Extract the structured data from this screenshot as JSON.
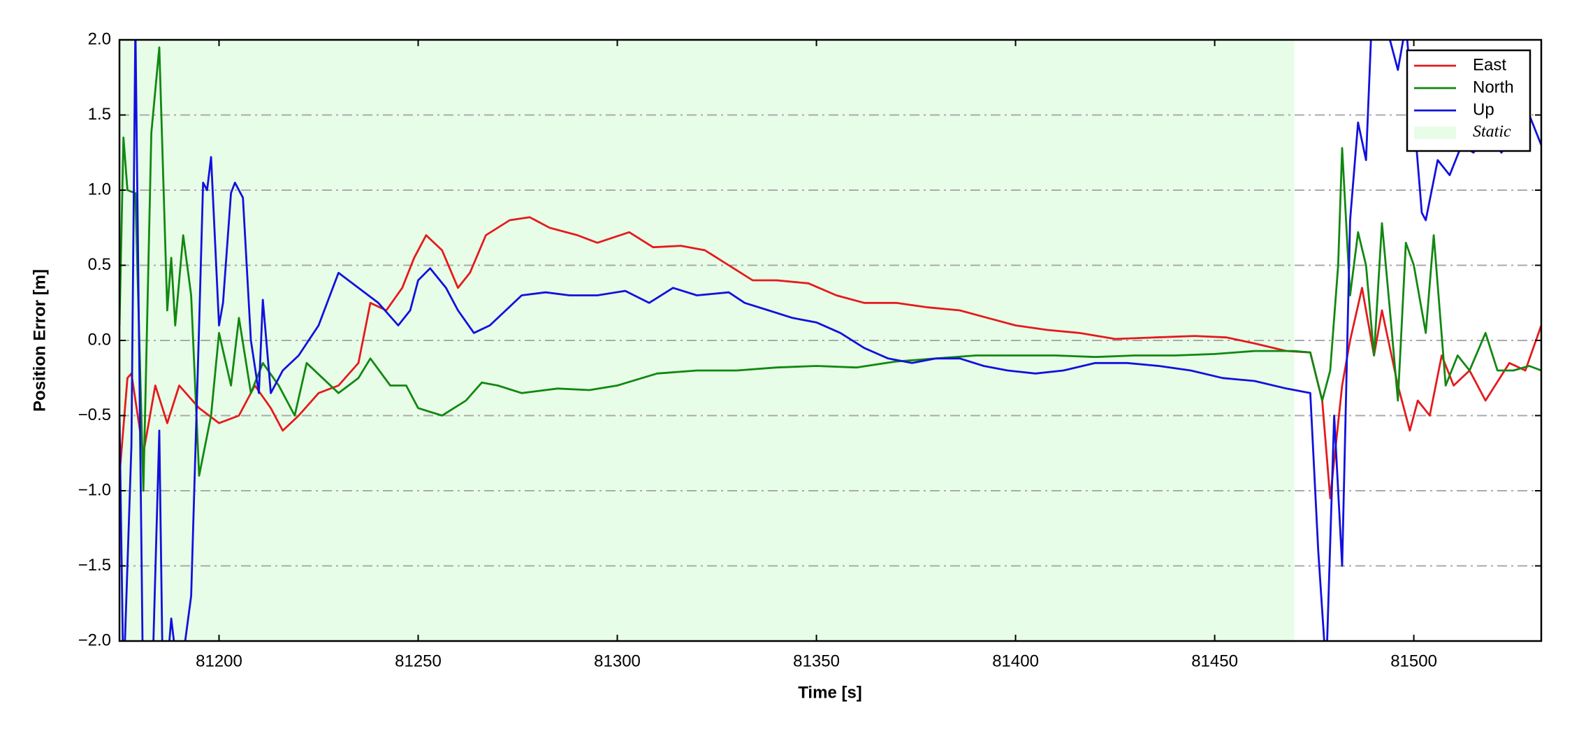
{
  "chart_data": {
    "type": "line",
    "xlabel": "Time [s]",
    "ylabel": "Position Error [m]",
    "xlim": [
      81175,
      81532
    ],
    "ylim": [
      -2,
      2
    ],
    "xticks": [
      81200,
      81250,
      81300,
      81350,
      81400,
      81450,
      81500
    ],
    "yticks": [
      {
        "value": -2,
        "label": "−2.0"
      },
      {
        "value": -1.5,
        "label": "−1.5"
      },
      {
        "value": -1,
        "label": "−1.0"
      },
      {
        "value": -0.5,
        "label": "−0.5"
      },
      {
        "value": 0,
        "label": "0.0"
      },
      {
        "value": 0.5,
        "label": "0.5"
      },
      {
        "value": 1,
        "label": "1.0"
      },
      {
        "value": 1.5,
        "label": "1.5"
      },
      {
        "value": 2,
        "label": "2.0"
      }
    ],
    "grid": true,
    "legend": "upper right",
    "spans": [
      {
        "name": "Static",
        "color": "#e8fde8",
        "x": [
          81175,
          81470
        ]
      }
    ],
    "series": [
      {
        "name": "East",
        "color": "#e41a1c",
        "x": [
          81175,
          81177,
          81178,
          81181,
          81184,
          81187,
          81190,
          81195,
          81200,
          81205,
          81209,
          81213,
          81216,
          81220,
          81225,
          81230,
          81235,
          81238,
          81242,
          81246,
          81249,
          81252,
          81256,
          81260,
          81263,
          81267,
          81273,
          81278,
          81283,
          81290,
          81295,
          81303,
          81309,
          81316,
          81322,
          81328,
          81334,
          81340,
          81348,
          81355,
          81362,
          81370,
          81378,
          81386,
          81393,
          81400,
          81408,
          81416,
          81425,
          81435,
          81445,
          81453,
          81460,
          81468,
          81474,
          81477,
          81479,
          81482,
          81484,
          81487,
          81490,
          81492,
          81496,
          81499,
          81501,
          81504,
          81507,
          81510,
          81514,
          81518,
          81524,
          81528,
          81532
        ],
        "values": [
          -0.9,
          -0.25,
          -0.22,
          -0.75,
          -0.3,
          -0.55,
          -0.3,
          -0.45,
          -0.55,
          -0.5,
          -0.3,
          -0.45,
          -0.6,
          -0.5,
          -0.35,
          -0.3,
          -0.15,
          0.25,
          0.2,
          0.35,
          0.55,
          0.7,
          0.6,
          0.35,
          0.45,
          0.7,
          0.8,
          0.82,
          0.75,
          0.7,
          0.65,
          0.72,
          0.62,
          0.63,
          0.6,
          0.5,
          0.4,
          0.4,
          0.38,
          0.3,
          0.25,
          0.25,
          0.22,
          0.2,
          0.15,
          0.1,
          0.07,
          0.05,
          0.01,
          0.02,
          0.03,
          0.02,
          -0.02,
          -0.07,
          -0.08,
          -0.4,
          -1.05,
          -0.3,
          0.0,
          0.35,
          -0.1,
          0.2,
          -0.3,
          -0.6,
          -0.4,
          -0.5,
          -0.1,
          -0.3,
          -0.2,
          -0.4,
          -0.15,
          -0.2,
          0.1
        ]
      },
      {
        "name": "North",
        "color": "#118811",
        "x": [
          81175,
          81176,
          81177,
          81179,
          81181,
          81183,
          81185,
          81187,
          81188,
          81189,
          81191,
          81193,
          81195,
          81198,
          81200,
          81203,
          81205,
          81208,
          81211,
          81215,
          81219,
          81222,
          81226,
          81230,
          81235,
          81238,
          81243,
          81247,
          81250,
          81256,
          81262,
          81266,
          81270,
          81276,
          81285,
          81293,
          81300,
          81310,
          81320,
          81330,
          81340,
          81350,
          81360,
          81370,
          81380,
          81390,
          81400,
          81410,
          81420,
          81430,
          81440,
          81450,
          81460,
          81470,
          81474,
          81477,
          81479,
          81481,
          81482,
          81484,
          81486,
          81488,
          81490,
          81492,
          81494,
          81496,
          81498,
          81500,
          81503,
          81505,
          81508,
          81511,
          81514,
          81518,
          81521,
          81525,
          81529,
          81532
        ],
        "values": [
          0.1,
          1.35,
          1.0,
          0.98,
          -1.0,
          1.38,
          1.95,
          0.2,
          0.55,
          0.1,
          0.7,
          0.3,
          -0.9,
          -0.5,
          0.05,
          -0.3,
          0.15,
          -0.35,
          -0.15,
          -0.3,
          -0.5,
          -0.15,
          -0.25,
          -0.35,
          -0.25,
          -0.12,
          -0.3,
          -0.3,
          -0.45,
          -0.5,
          -0.4,
          -0.28,
          -0.3,
          -0.35,
          -0.32,
          -0.33,
          -0.3,
          -0.22,
          -0.2,
          -0.2,
          -0.18,
          -0.17,
          -0.18,
          -0.14,
          -0.12,
          -0.1,
          -0.1,
          -0.1,
          -0.11,
          -0.1,
          -0.1,
          -0.09,
          -0.07,
          -0.07,
          -0.08,
          -0.4,
          -0.2,
          0.5,
          1.28,
          0.3,
          0.72,
          0.5,
          -0.1,
          0.78,
          0.2,
          -0.4,
          0.65,
          0.5,
          0.05,
          0.7,
          -0.3,
          -0.1,
          -0.2,
          0.05,
          -0.2,
          -0.2,
          -0.17,
          -0.2
        ]
      },
      {
        "name": "Up",
        "color": "#1111dd",
        "x": [
          81175,
          81176,
          81178,
          81179,
          81181,
          81183,
          81185,
          81186,
          81188,
          81190,
          81193,
          81195,
          81196,
          81197,
          81198,
          81200,
          81201,
          81203,
          81204,
          81206,
          81208,
          81210,
          81211,
          81213,
          81216,
          81220,
          81225,
          81230,
          81235,
          81240,
          81245,
          81248,
          81250,
          81253,
          81257,
          81260,
          81264,
          81268,
          81272,
          81276,
          81282,
          81288,
          81295,
          81302,
          81308,
          81314,
          81320,
          81328,
          81332,
          81338,
          81344,
          81350,
          81356,
          81362,
          81368,
          81374,
          81380,
          81386,
          81392,
          81398,
          81405,
          81412,
          81420,
          81428,
          81436,
          81444,
          81452,
          81460,
          81468,
          81474,
          81476,
          81478,
          81480,
          81482,
          81484,
          81486,
          81488,
          81490,
          81492,
          81494,
          81496,
          81498,
          81500,
          81502,
          81503,
          81506,
          81509,
          81512,
          81515,
          81518,
          81522,
          81526,
          81529,
          81532
        ],
        "values": [
          -0.5,
          -2.3,
          -0.7,
          2.1,
          -2.5,
          -2.5,
          -0.6,
          -2.5,
          -1.85,
          -2.3,
          -1.7,
          0.1,
          1.05,
          1.0,
          1.22,
          0.1,
          0.25,
          0.98,
          1.05,
          0.95,
          0.0,
          -0.35,
          0.27,
          -0.35,
          -0.2,
          -0.1,
          0.1,
          0.45,
          0.35,
          0.25,
          0.1,
          0.2,
          0.4,
          0.48,
          0.35,
          0.2,
          0.05,
          0.1,
          0.2,
          0.3,
          0.32,
          0.3,
          0.3,
          0.33,
          0.25,
          0.35,
          0.3,
          0.32,
          0.25,
          0.2,
          0.15,
          0.12,
          0.05,
          -0.05,
          -0.12,
          -0.15,
          -0.12,
          -0.12,
          -0.17,
          -0.2,
          -0.22,
          -0.2,
          -0.15,
          -0.15,
          -0.17,
          -0.2,
          -0.25,
          -0.27,
          -0.32,
          -0.35,
          -1.4,
          -2.2,
          -0.5,
          -1.5,
          0.8,
          1.45,
          1.2,
          2.5,
          2.2,
          2.0,
          1.8,
          2.1,
          1.5,
          0.85,
          0.8,
          1.2,
          1.1,
          1.3,
          1.25,
          1.4,
          1.25,
          1.4,
          1.5,
          1.3
        ]
      }
    ]
  }
}
